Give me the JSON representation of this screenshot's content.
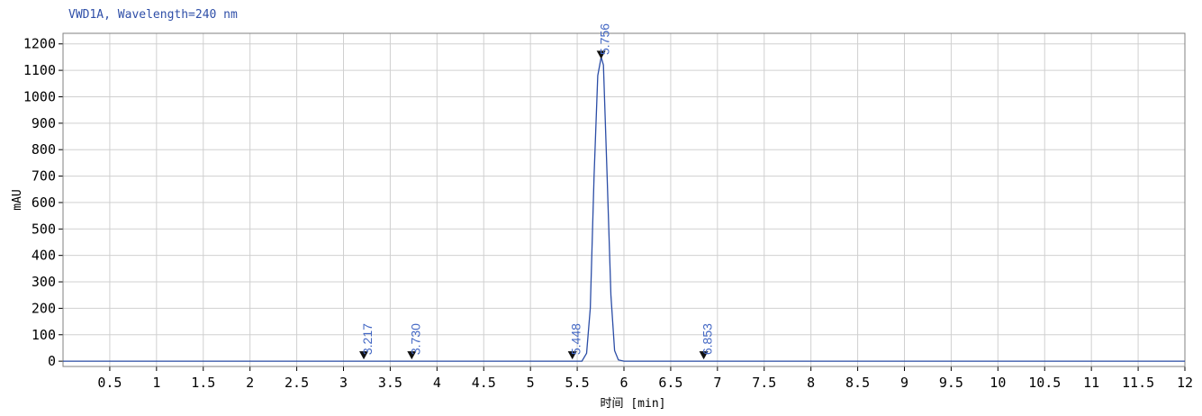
{
  "chart_data": {
    "type": "line",
    "title": "VWD1A, Wavelength=240 nm",
    "xlabel": "时间 [min]",
    "ylabel": "mAU",
    "xlim": [
      0,
      12
    ],
    "ylim": [
      -20,
      1240
    ],
    "x_ticks": [
      "0.5",
      "1",
      "1.5",
      "2",
      "2.5",
      "3",
      "3.5",
      "4",
      "4.5",
      "5",
      "5.5",
      "6",
      "6.5",
      "7",
      "7.5",
      "8",
      "8.5",
      "9",
      "9.5",
      "10",
      "10.5",
      "11",
      "11.5",
      "12"
    ],
    "y_ticks": [
      "0",
      "100",
      "200",
      "300",
      "400",
      "500",
      "600",
      "700",
      "800",
      "900",
      "1000",
      "1100",
      "1200"
    ],
    "grid": true,
    "colors": {
      "trace": "#2b4da6",
      "labels": "#4468c4",
      "grid": "#d0d0d0"
    },
    "series": [
      {
        "x": [
          0,
          5.55,
          5.6,
          5.64,
          5.68,
          5.72,
          5.756,
          5.78,
          5.82,
          5.86,
          5.9,
          5.94,
          6.0,
          12
        ],
        "values": [
          0,
          0,
          30,
          200,
          700,
          1080,
          1150,
          1120,
          700,
          250,
          40,
          5,
          0,
          0
        ]
      }
    ],
    "peaks": [
      {
        "rt": 3.217,
        "label": "3.217",
        "height": 0
      },
      {
        "rt": 3.73,
        "label": "3.730",
        "height": 0
      },
      {
        "rt": 5.448,
        "label": "5.448",
        "height": 0
      },
      {
        "rt": 5.756,
        "label": "5.756",
        "height": 1150
      },
      {
        "rt": 6.853,
        "label": "6.853",
        "height": 0
      }
    ]
  }
}
